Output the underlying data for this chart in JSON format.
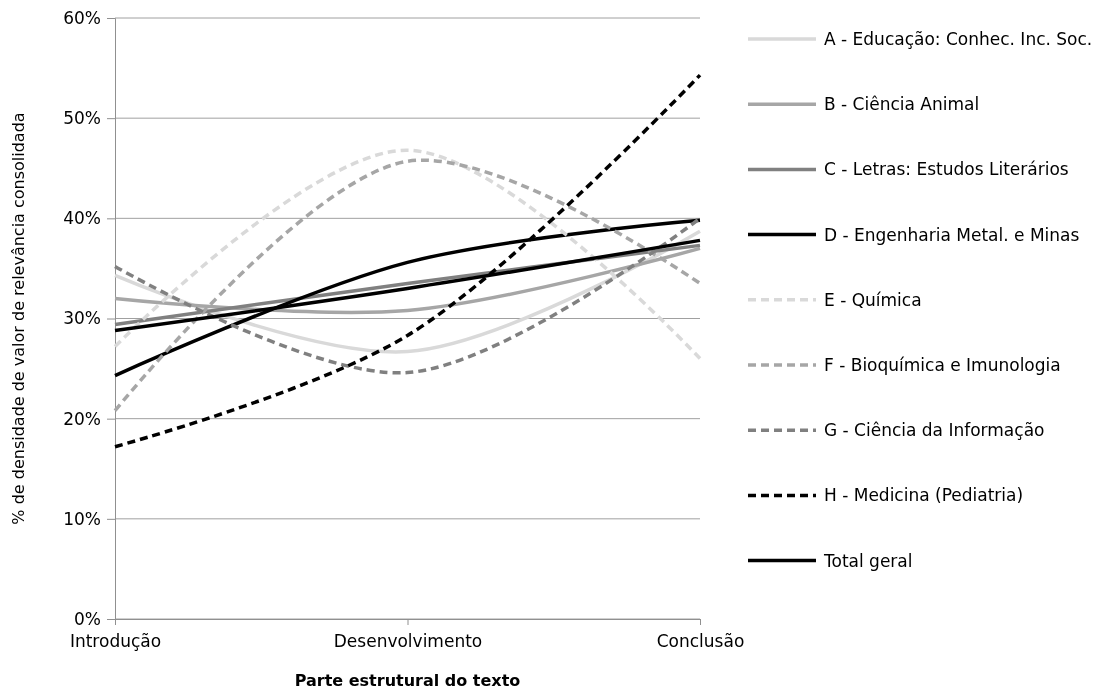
{
  "chart_data": {
    "type": "line",
    "xlabel": "Parte estrutural do texto",
    "ylabel": "% de densidade de valor de relevância consolidada",
    "categories": [
      "Introdução",
      "Desenvolvimento",
      "Conclusão"
    ],
    "ylim": [
      0,
      60
    ],
    "yticks": [
      {
        "value": 0,
        "label": "0%"
      },
      {
        "value": 10,
        "label": "10%"
      },
      {
        "value": 20,
        "label": "20%"
      },
      {
        "value": 30,
        "label": "30%"
      },
      {
        "value": 40,
        "label": "40%"
      },
      {
        "value": 50,
        "label": "50%"
      },
      {
        "value": 60,
        "label": "60%"
      }
    ],
    "grid": "y",
    "legend": "right",
    "marker": "none",
    "series": [
      {
        "name": "A - Educação: Conhec. Inc. Soc.",
        "color": "#d9d9d9",
        "line_style": "solid",
        "values": [
          34.3,
          26.7,
          38.7
        ]
      },
      {
        "name": "B - Ciência Animal",
        "color": "#a6a6a6",
        "line_style": "solid",
        "values": [
          32,
          30.8,
          37
        ]
      },
      {
        "name": "C - Letras: Estudos Literários",
        "color": "#808080",
        "line_style": "solid",
        "values": [
          29.4,
          33.5,
          37.3
        ]
      },
      {
        "name": "D - Engenharia Metal. e Minas",
        "color": "#000000",
        "line_style": "solid",
        "values": [
          24.3,
          35.6,
          39.8
        ]
      },
      {
        "name": "E - Química",
        "color": "#d9d9d9",
        "line_style": "dashed",
        "values": [
          27.2,
          46.8,
          26
        ]
      },
      {
        "name": "F - Bioquímica e Imunologia",
        "color": "#a6a6a6",
        "line_style": "dashed",
        "values": [
          20.8,
          45.7,
          33.5
        ]
      },
      {
        "name": "G - Ciência da Informação",
        "color": "#808080",
        "line_style": "dashed",
        "values": [
          35.2,
          24.6,
          40
        ]
      },
      {
        "name": "H - Medicina (Pediatria)",
        "color": "#000000",
        "line_style": "dashed",
        "values": [
          17.2,
          28.3,
          54.3
        ]
      },
      {
        "name": "Total geral",
        "color": "#000000",
        "line_style": "solid",
        "values": [
          28.8,
          33,
          37.8
        ]
      }
    ]
  }
}
